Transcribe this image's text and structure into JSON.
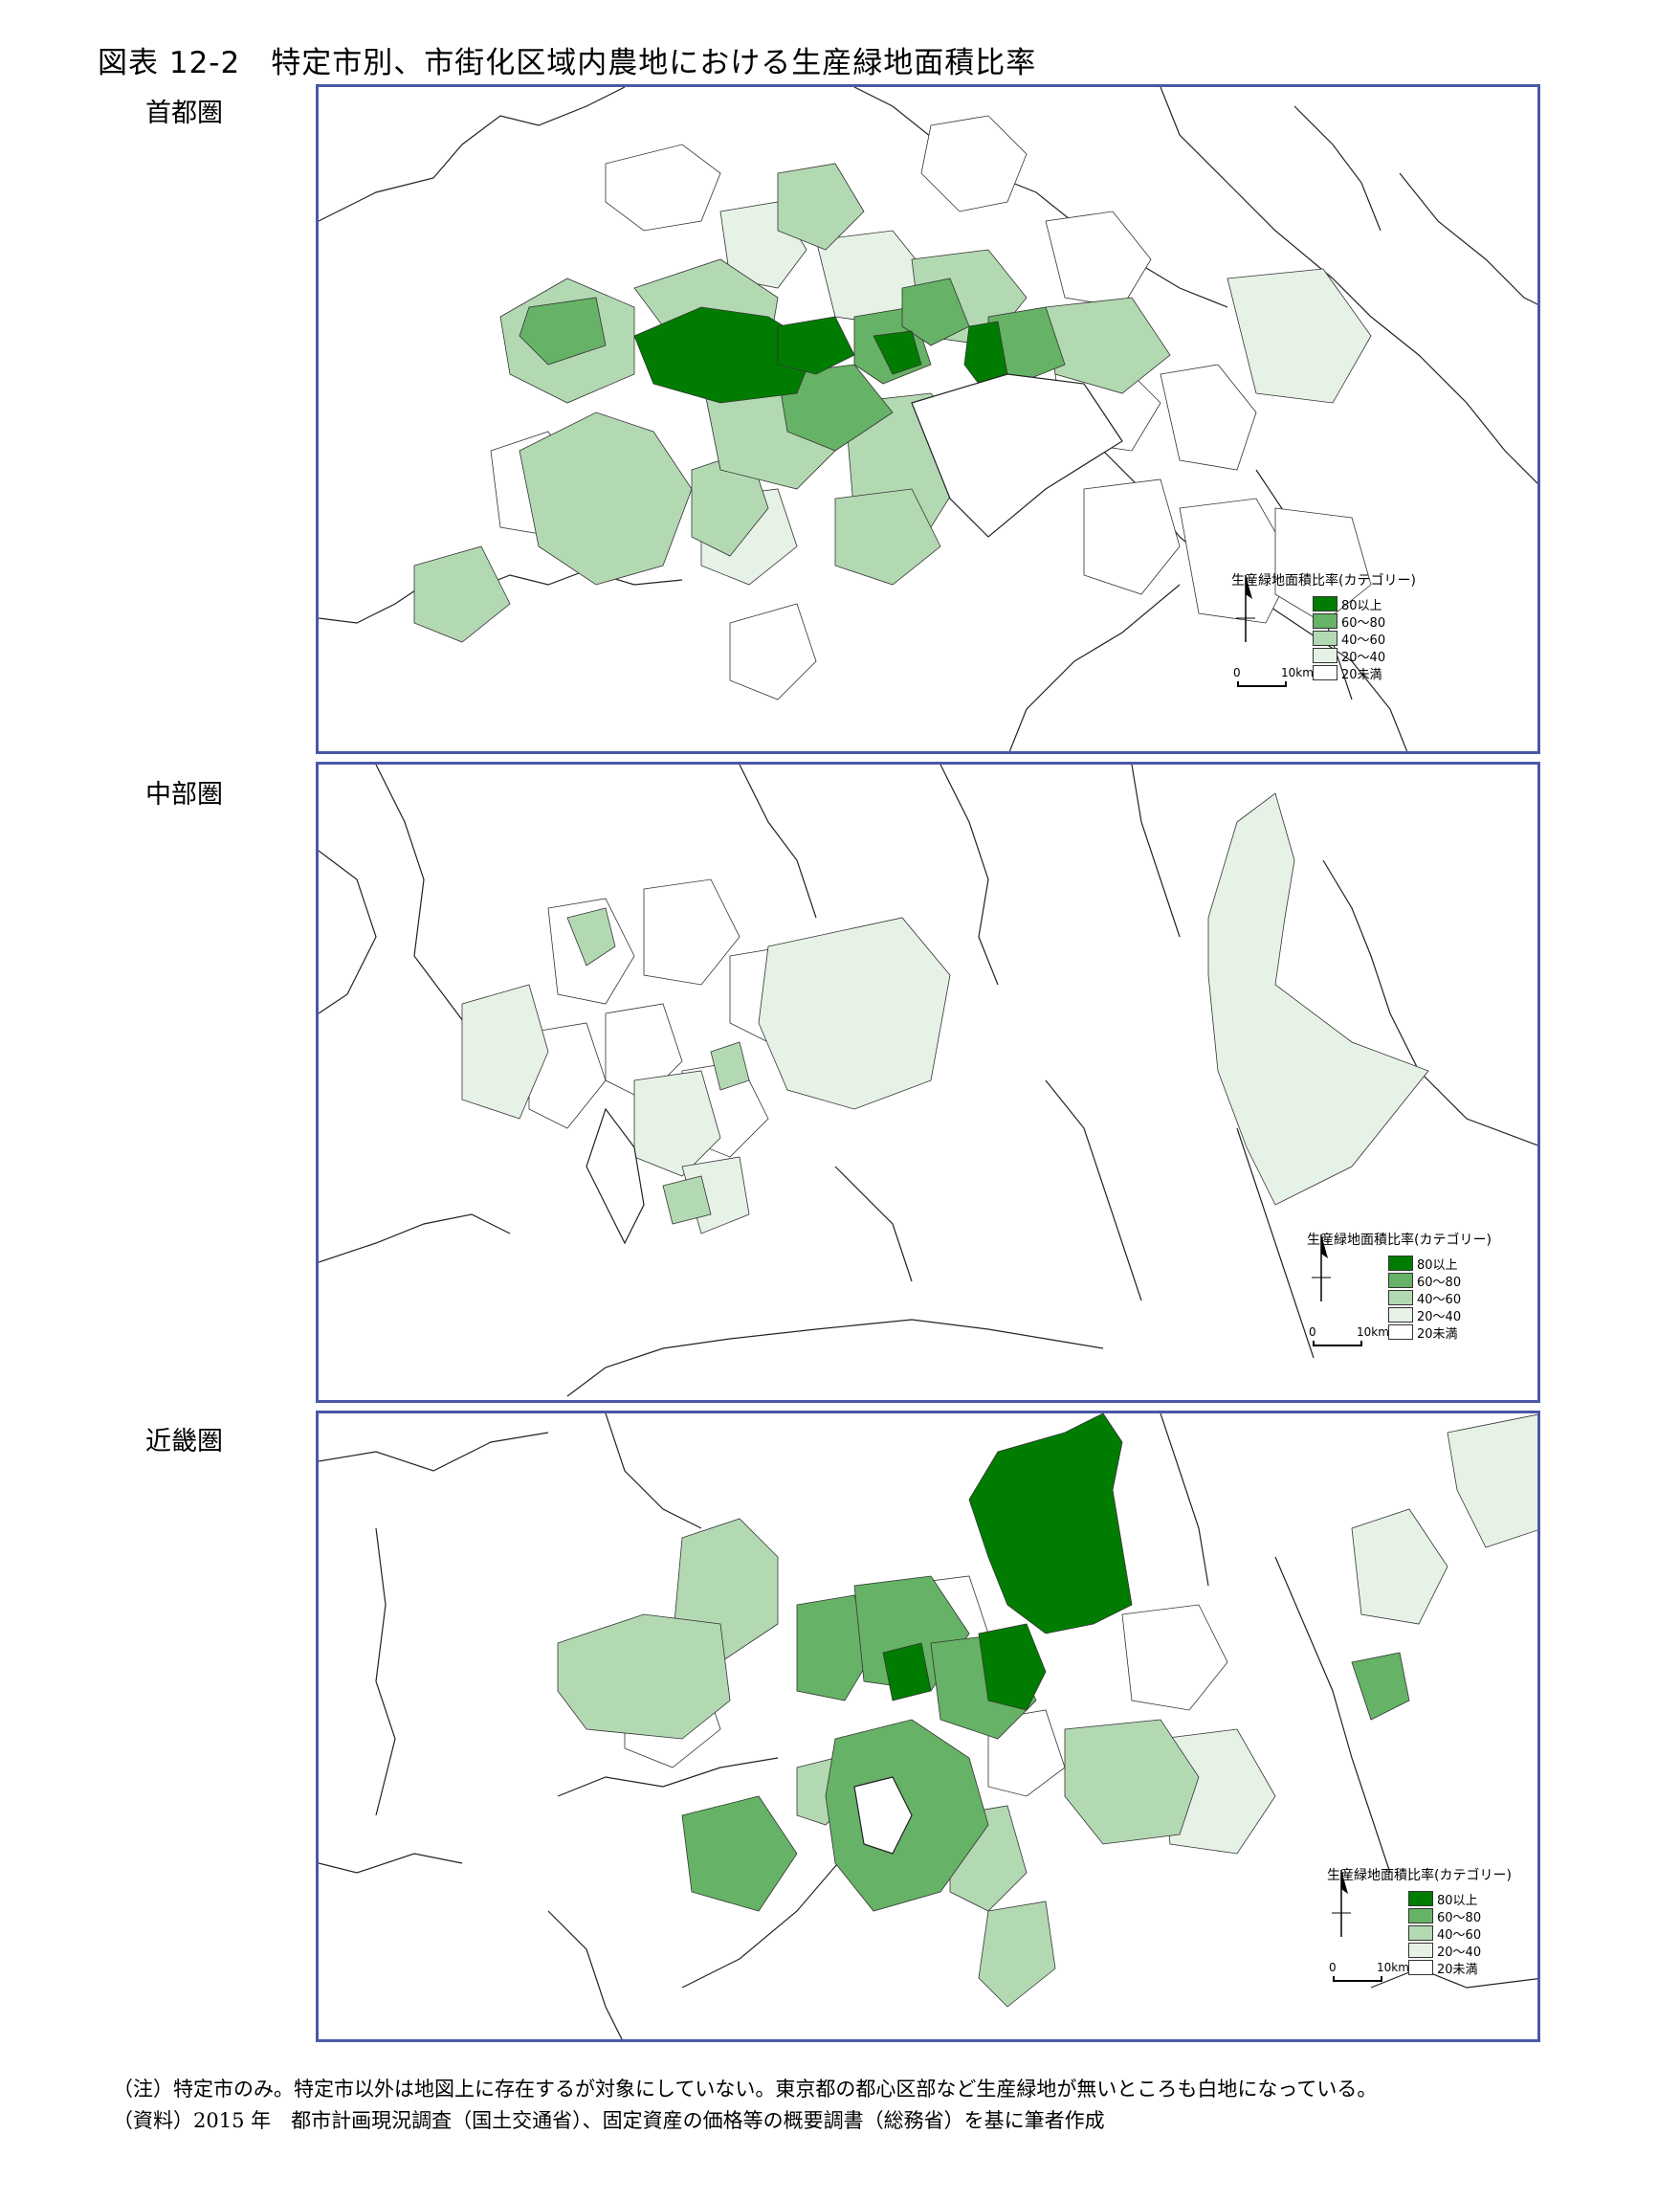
{
  "title": "図表 12-2　特定市別、市街化区域内農地における生産緑地面積比率",
  "panels": [
    {
      "label": "首都圏"
    },
    {
      "label": "中部圏"
    },
    {
      "label": "近畿圏"
    }
  ],
  "legend": {
    "title": "生産緑地面積比率(カテゴリー)",
    "items": [
      {
        "label": "80以上",
        "color": "#007d00"
      },
      {
        "label": "60～80",
        "color": "#66b266"
      },
      {
        "label": "40～60",
        "color": "#b3d9b3"
      },
      {
        "label": "20～40",
        "color": "#e6f2e6"
      },
      {
        "label": "20未満",
        "color": "#ffffff"
      }
    ],
    "scale_zero": "0",
    "scale_distance": "10km"
  },
  "notes": {
    "note": "（注）特定市のみ。特定市以外は地図上に存在するが対象にしていない。東京都の都心区部など生産緑地が無いところも白地になっている。",
    "source": "（資料）2015 年　都市計画現況調査（国土交通省）、固定資産の価格等の概要調書（総務省）を基に筆者作成"
  },
  "colors": {
    "border": "#4a58a8",
    "outline": "#000000"
  }
}
